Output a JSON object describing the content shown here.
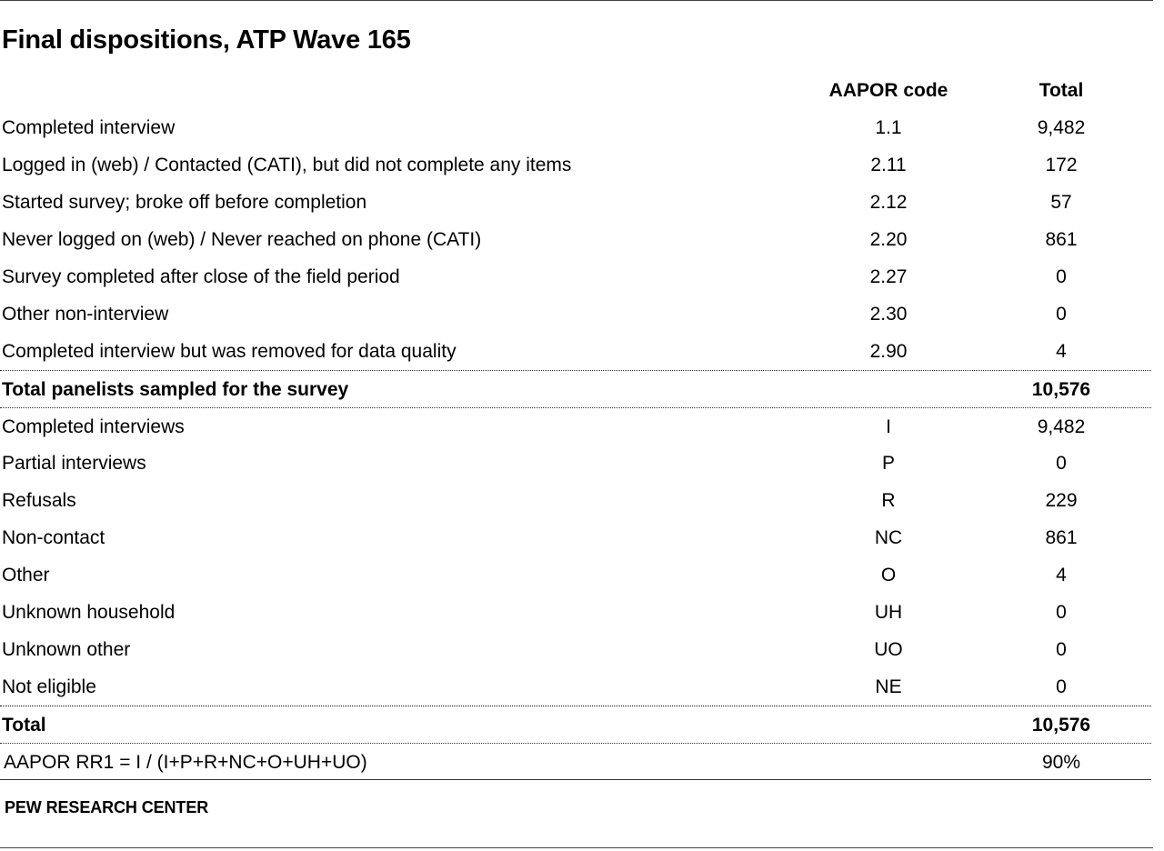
{
  "title": "Final dispositions, ATP Wave 165",
  "headers": {
    "label": "",
    "code": "AAPOR code",
    "total": "Total"
  },
  "rows": [
    {
      "label": "Completed interview",
      "code": "1.1",
      "total": "9,482"
    },
    {
      "label": "Logged in (web) / Contacted (CATI), but did not complete any items",
      "code": "2.11",
      "total": "172"
    },
    {
      "label": "Started survey; broke off before completion",
      "code": "2.12",
      "total": "57"
    },
    {
      "label": "Never logged on (web) / Never reached on phone (CATI)",
      "code": "2.20",
      "total": "861"
    },
    {
      "label": "Survey completed after close of the field period",
      "code": "2.27",
      "total": "0"
    },
    {
      "label": "Other non-interview",
      "code": "2.30",
      "total": "0"
    },
    {
      "label": "Completed interview but was removed for data quality",
      "code": "2.90",
      "total": "4"
    }
  ],
  "sampled_total": {
    "label": "Total panelists sampled for the survey",
    "code": "",
    "total": "10,576"
  },
  "categories": [
    {
      "label": "Completed interviews",
      "code": "I",
      "total": "9,482"
    },
    {
      "label": "Partial interviews",
      "code": "P",
      "total": "0"
    },
    {
      "label": "Refusals",
      "code": "R",
      "total": "229"
    },
    {
      "label": "Non-contact",
      "code": "NC",
      "total": "861"
    },
    {
      "label": "Other",
      "code": "O",
      "total": "4"
    },
    {
      "label": "Unknown household",
      "code": "UH",
      "total": "0"
    },
    {
      "label": "Unknown other",
      "code": "UO",
      "total": "0"
    },
    {
      "label": "Not eligible",
      "code": "NE",
      "total": "0"
    }
  ],
  "grand_total": {
    "label": "Total",
    "code": "",
    "total": "10,576"
  },
  "response_rate": {
    "label": "AAPOR RR1 = I / (I+P+R+NC+O+UH+UO)",
    "total": "90%"
  },
  "source": "PEW RESEARCH CENTER"
}
